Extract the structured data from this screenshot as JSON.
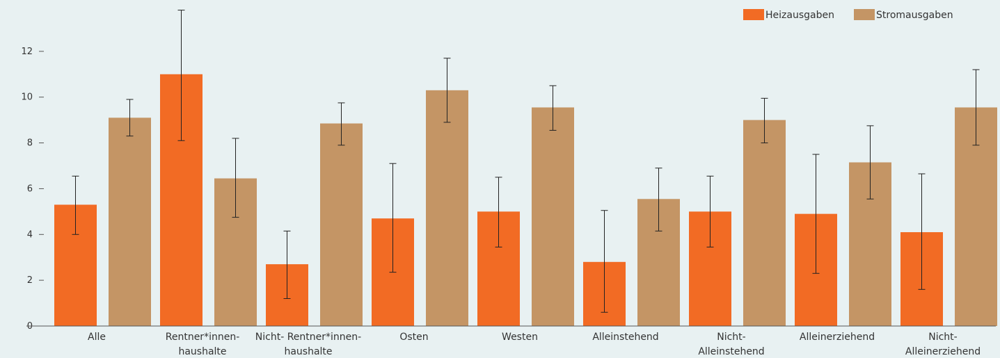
{
  "chart_data": {
    "type": "bar",
    "title": "",
    "xlabel": "",
    "ylabel": "",
    "ylim": [
      0,
      14
    ],
    "yticks": [
      0,
      2,
      4,
      6,
      8,
      10,
      12
    ],
    "grid": false,
    "legend_position": "top-right",
    "categories": [
      [
        "Alle"
      ],
      [
        "Rentner*innen-",
        "haushalte"
      ],
      [
        "Nicht- Rentner*innen-",
        "haushalte"
      ],
      [
        "Osten"
      ],
      [
        "Westen"
      ],
      [
        "Alleinstehend"
      ],
      [
        "Nicht-",
        "Alleinstehend"
      ],
      [
        "Alleinerziehend"
      ],
      [
        "Nicht-",
        "Alleinerziehend"
      ]
    ],
    "series": [
      {
        "name": "Heizausgaben",
        "color": "#f26b24",
        "values": [
          5.3,
          11.0,
          2.7,
          4.7,
          5.0,
          2.8,
          5.0,
          4.9,
          4.1
        ],
        "error_low": [
          4.0,
          8.1,
          1.2,
          2.35,
          3.45,
          0.6,
          3.45,
          2.3,
          1.6
        ],
        "error_high": [
          6.55,
          13.8,
          4.15,
          7.1,
          6.5,
          5.05,
          6.55,
          7.5,
          6.65
        ]
      },
      {
        "name": "Stromausgaben",
        "color": "#c49565",
        "values": [
          9.1,
          6.45,
          8.85,
          10.3,
          9.55,
          5.55,
          9.0,
          7.15,
          9.55
        ],
        "error_low": [
          8.3,
          4.75,
          7.9,
          8.9,
          8.55,
          4.15,
          8.0,
          5.55,
          7.9
        ],
        "error_high": [
          9.9,
          8.2,
          9.75,
          11.7,
          10.5,
          6.9,
          9.95,
          8.75,
          11.2
        ]
      }
    ]
  }
}
